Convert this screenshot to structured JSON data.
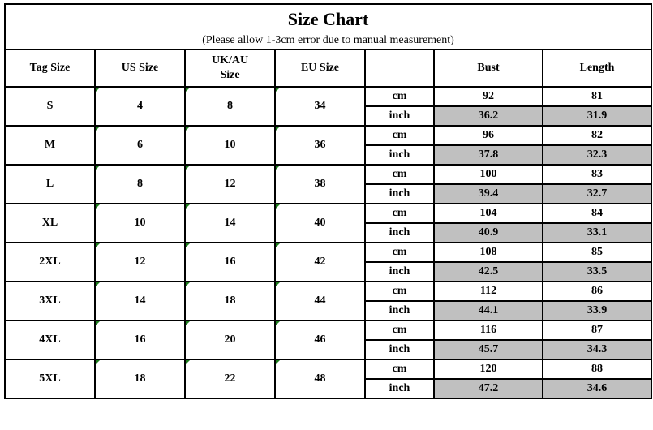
{
  "title": "Size Chart",
  "subtitle": "(Please allow 1-3cm error due to manual measurement)",
  "headers": [
    "Tag Size",
    "US Size",
    "UK/AU Size",
    "EU Size",
    "",
    "Bust",
    "Length"
  ],
  "units": [
    "cm",
    "inch"
  ],
  "inch_fill_color": "#c0c0c0",
  "rows": [
    {
      "tag": "S",
      "us": "4",
      "uk": "8",
      "eu": "34",
      "bust_cm": "92",
      "length_cm": "81",
      "bust_inch": "36.2",
      "length_inch": "31.9"
    },
    {
      "tag": "M",
      "us": "6",
      "uk": "10",
      "eu": "36",
      "bust_cm": "96",
      "length_cm": "82",
      "bust_inch": "37.8",
      "length_inch": "32.3"
    },
    {
      "tag": "L",
      "us": "8",
      "uk": "12",
      "eu": "38",
      "bust_cm": "100",
      "length_cm": "83",
      "bust_inch": "39.4",
      "length_inch": "32.7"
    },
    {
      "tag": "XL",
      "us": "10",
      "uk": "14",
      "eu": "40",
      "bust_cm": "104",
      "length_cm": "84",
      "bust_inch": "40.9",
      "length_inch": "33.1"
    },
    {
      "tag": "2XL",
      "us": "12",
      "uk": "16",
      "eu": "42",
      "bust_cm": "108",
      "length_cm": "85",
      "bust_inch": "42.5",
      "length_inch": "33.5"
    },
    {
      "tag": "3XL",
      "us": "14",
      "uk": "18",
      "eu": "44",
      "bust_cm": "112",
      "length_cm": "86",
      "bust_inch": "44.1",
      "length_inch": "33.9"
    },
    {
      "tag": "4XL",
      "us": "16",
      "uk": "20",
      "eu": "46",
      "bust_cm": "116",
      "length_cm": "87",
      "bust_inch": "45.7",
      "length_inch": "34.3"
    },
    {
      "tag": "5XL",
      "us": "18",
      "uk": "22",
      "eu": "48",
      "bust_cm": "120",
      "length_cm": "88",
      "bust_inch": "47.2",
      "length_inch": "34.6"
    }
  ]
}
